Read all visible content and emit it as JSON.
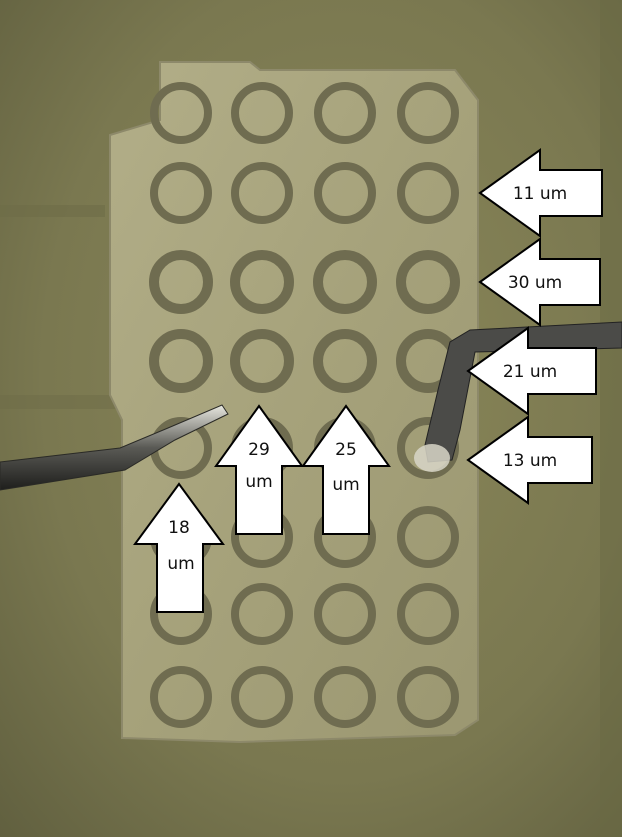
{
  "scene": "microscope photo of a metal pad array with probe wires and annotated thickness arrows",
  "colors": {
    "background": "#7e7c52",
    "pad": "#a9a57e",
    "ring": "#6f6c50",
    "arrow_fill": "#ffffff",
    "arrow_stroke": "#000000"
  },
  "arrows": [
    {
      "id": "arrow-11",
      "direction": "left",
      "text": "11 um"
    },
    {
      "id": "arrow-30",
      "direction": "left",
      "text": "30 um"
    },
    {
      "id": "arrow-21",
      "direction": "left",
      "text": "21 um"
    },
    {
      "id": "arrow-13",
      "direction": "left",
      "text": "13 um"
    },
    {
      "id": "arrow-29",
      "direction": "up",
      "line1": "29",
      "line2": "um"
    },
    {
      "id": "arrow-25",
      "direction": "up",
      "line1": "25",
      "line2": "um"
    },
    {
      "id": "arrow-18",
      "direction": "up",
      "line1": "18",
      "line2": "um"
    }
  ]
}
